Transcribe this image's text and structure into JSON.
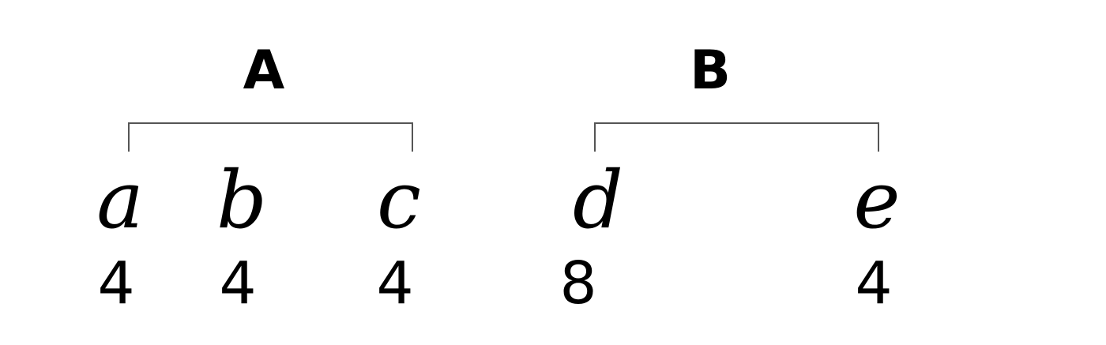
{
  "groups": [
    {
      "label": "A",
      "items": [
        {
          "variable": "a",
          "value": "4"
        },
        {
          "variable": "b",
          "value": "4"
        },
        {
          "variable": "c",
          "value": "4"
        }
      ]
    },
    {
      "label": "B",
      "items": [
        {
          "variable": "d",
          "value": "8"
        },
        {
          "variable": "e",
          "value": "4"
        }
      ]
    }
  ]
}
